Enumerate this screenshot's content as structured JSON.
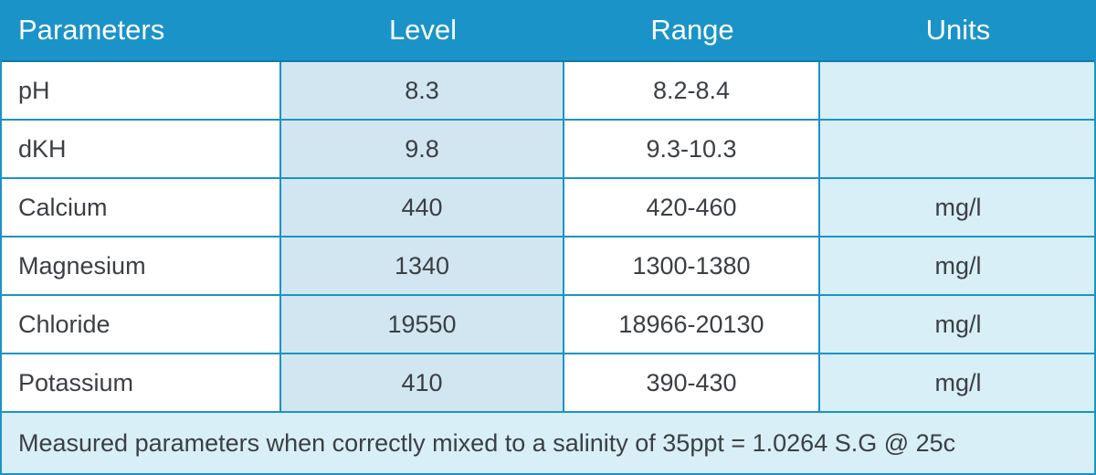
{
  "table": {
    "headers": [
      "Parameters",
      "Level",
      "Range",
      "Units"
    ],
    "rows": [
      {
        "parameter": "pH",
        "level": "8.3",
        "range": "8.2-8.4",
        "units": ""
      },
      {
        "parameter": "dKH",
        "level": "9.8",
        "range": "9.3-10.3",
        "units": ""
      },
      {
        "parameter": "Calcium",
        "level": "440",
        "range": "420-460",
        "units": "mg/l"
      },
      {
        "parameter": "Magnesium",
        "level": "1340",
        "range": "1300-1380",
        "units": "mg/l"
      },
      {
        "parameter": "Chloride",
        "level": "19550",
        "range": "18966-20130",
        "units": "mg/l"
      },
      {
        "parameter": "Potassium",
        "level": "410",
        "range": "390-430",
        "units": "mg/l"
      }
    ],
    "footnote": "Measured parameters when correctly mixed to a salinity of 35ppt = 1.0264 S.G @ 25c"
  },
  "colors": {
    "header_bg": "#1a93c8",
    "level_col_bg": "#d2e6f1",
    "units_col_bg": "#d8eff7",
    "footer_bg": "#d8eff7",
    "text": "#3b3f44"
  }
}
